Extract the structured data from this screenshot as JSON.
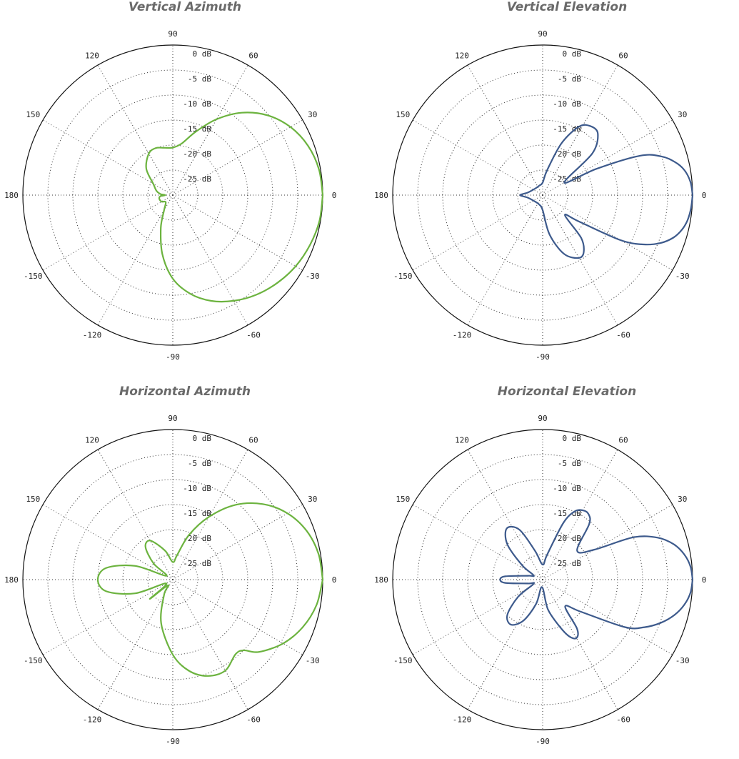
{
  "chart_data": [
    {
      "type": "polar-line",
      "title": "Vertical Azimuth",
      "color": "#6cb33f",
      "r_unit": "dB",
      "r_range": [
        -30,
        0
      ],
      "ring_labels": [
        "0 dB",
        "-5 dB",
        "-10 dB",
        "-15 dB",
        "-20 dB",
        "-25 dB"
      ],
      "angle_labels": [
        "0",
        "30",
        "60",
        "90",
        "120",
        "150",
        "180",
        "-150",
        "-120",
        "-90",
        "-60",
        "-30"
      ],
      "grid": true,
      "series": [
        {
          "angle_deg": [
            0,
            10,
            20,
            30,
            40,
            50,
            60,
            70,
            80,
            90,
            100,
            110,
            120,
            135,
            150,
            165,
            175,
            180,
            185,
            195,
            210,
            225,
            240,
            250,
            260,
            270,
            280,
            290,
            300,
            310,
            320,
            330,
            340,
            350,
            360
          ],
          "gain_db": [
            0,
            -0.3,
            -1.2,
            -2.8,
            -5.2,
            -8.5,
            -12.5,
            -16.5,
            -19.5,
            -20.5,
            -20.4,
            -20.0,
            -20.4,
            -22.5,
            -25.5,
            -26.6,
            -27.5,
            -28.5,
            -27.5,
            -27.2,
            -27.4,
            -28.0,
            -26.5,
            -23.0,
            -18.0,
            -13.3,
            -10.0,
            -7.5,
            -5.6,
            -4.0,
            -2.7,
            -1.6,
            -0.8,
            -0.2,
            0
          ]
        }
      ]
    },
    {
      "type": "polar-line",
      "title": "Vertical Elevation",
      "color": "#3d5a8c",
      "r_unit": "dB",
      "r_range": [
        -30,
        0
      ],
      "ring_labels": [
        "0 dB",
        "-5 dB",
        "-10 dB",
        "-15 dB",
        "-20 dB",
        "-25 dB"
      ],
      "angle_labels": [
        "0",
        "30",
        "60",
        "90",
        "120",
        "150",
        "180",
        "-150",
        "-120",
        "-90",
        "-60",
        "-30"
      ],
      "grid": true,
      "series": [
        {
          "angle_deg": [
            0,
            5,
            10,
            14,
            18,
            22,
            26,
            30,
            40,
            48,
            55,
            62,
            70,
            80,
            90,
            110,
            140,
            170,
            180,
            190,
            220,
            250,
            270,
            280,
            290,
            300,
            306,
            312,
            318,
            324,
            330,
            334,
            338,
            342,
            346,
            350,
            355,
            360
          ],
          "gain_db": [
            0,
            -0.3,
            -1.2,
            -2.7,
            -5.0,
            -9.0,
            -18.0,
            -25.0,
            -17.0,
            -13.5,
            -13.2,
            -14.5,
            -19.0,
            -25.0,
            -27.5,
            -28.0,
            -28.0,
            -27.0,
            -25.5,
            -27.0,
            -28.0,
            -28.0,
            -27.0,
            -22.0,
            -17.5,
            -15.5,
            -16.0,
            -18.5,
            -24.0,
            -21.0,
            -12.0,
            -7.5,
            -4.5,
            -2.5,
            -1.3,
            -0.6,
            -0.2,
            0
          ]
        }
      ]
    },
    {
      "type": "polar-line",
      "title": "Horizontal Azimuth",
      "color": "#6cb33f",
      "r_unit": "dB",
      "r_range": [
        -30,
        0
      ],
      "ring_labels": [
        "0 dB",
        "-5 dB",
        "-10 dB",
        "-15 dB",
        "-20 dB",
        "-25 dB"
      ],
      "angle_labels": [
        "0",
        "30",
        "60",
        "90",
        "120",
        "150",
        "180",
        "-150",
        "-120",
        "-90",
        "-60",
        "-30"
      ],
      "grid": true,
      "series": [
        {
          "angle_deg": [
            0,
            10,
            20,
            30,
            40,
            50,
            60,
            70,
            80,
            90,
            105,
            120,
            130,
            140,
            150,
            160,
            170,
            180,
            190,
            200,
            210,
            220,
            230,
            240,
            255,
            270,
            280,
            290,
            300,
            310,
            315,
            320,
            330,
            340,
            350,
            360
          ],
          "gain_db": [
            0,
            -0.4,
            -1.5,
            -3.5,
            -6.5,
            -10.5,
            -15.5,
            -20.5,
            -25.0,
            -26.5,
            -24.0,
            -21.0,
            -21.5,
            -25.0,
            -28.5,
            -22.0,
            -16.5,
            -15.0,
            -16.5,
            -22.0,
            -28.5,
            -24.0,
            -28.5,
            -26.5,
            -21.0,
            -15.0,
            -11.5,
            -9.5,
            -9.0,
            -10.5,
            -10.0,
            -7.5,
            -4.5,
            -2.3,
            -0.8,
            0
          ]
        }
      ]
    },
    {
      "type": "polar-line",
      "title": "Horizontal Elevation",
      "color": "#3d5a8c",
      "r_unit": "dB",
      "r_range": [
        -30,
        0
      ],
      "ring_labels": [
        "0 dB",
        "-5 dB",
        "-10 dB",
        "-15 dB",
        "-20 dB",
        "-25 dB"
      ],
      "angle_labels": [
        "0",
        "30",
        "60",
        "90",
        "120",
        "150",
        "180",
        "-150",
        "-120",
        "-90",
        "-60",
        "-30"
      ],
      "grid": true,
      "series": [
        {
          "angle_deg": [
            0,
            5,
            10,
            15,
            20,
            25,
            30,
            40,
            50,
            55,
            60,
            65,
            70,
            80,
            90,
            105,
            115,
            125,
            135,
            145,
            155,
            165,
            175,
            180,
            185,
            195,
            205,
            215,
            225,
            235,
            245,
            255,
            265,
            280,
            290,
            295,
            300,
            305,
            310,
            320,
            330,
            335,
            340,
            345,
            350,
            355,
            360
          ],
          "gain_db": [
            0,
            -0.3,
            -1.2,
            -2.8,
            -5.5,
            -10.0,
            -18.0,
            -21.0,
            -15.5,
            -14.0,
            -14.0,
            -15.0,
            -18.0,
            -25.0,
            -27.0,
            -24.0,
            -19.0,
            -17.5,
            -20.0,
            -25.0,
            -28.0,
            -27.0,
            -22.5,
            -21.5,
            -22.5,
            -27.0,
            -28.0,
            -24.0,
            -20.0,
            -19.0,
            -21.0,
            -25.0,
            -28.5,
            -24.0,
            -20.0,
            -17.5,
            -16.5,
            -18.0,
            -23.0,
            -20.0,
            -11.0,
            -7.5,
            -4.8,
            -2.7,
            -1.2,
            -0.3,
            0
          ]
        }
      ]
    }
  ]
}
